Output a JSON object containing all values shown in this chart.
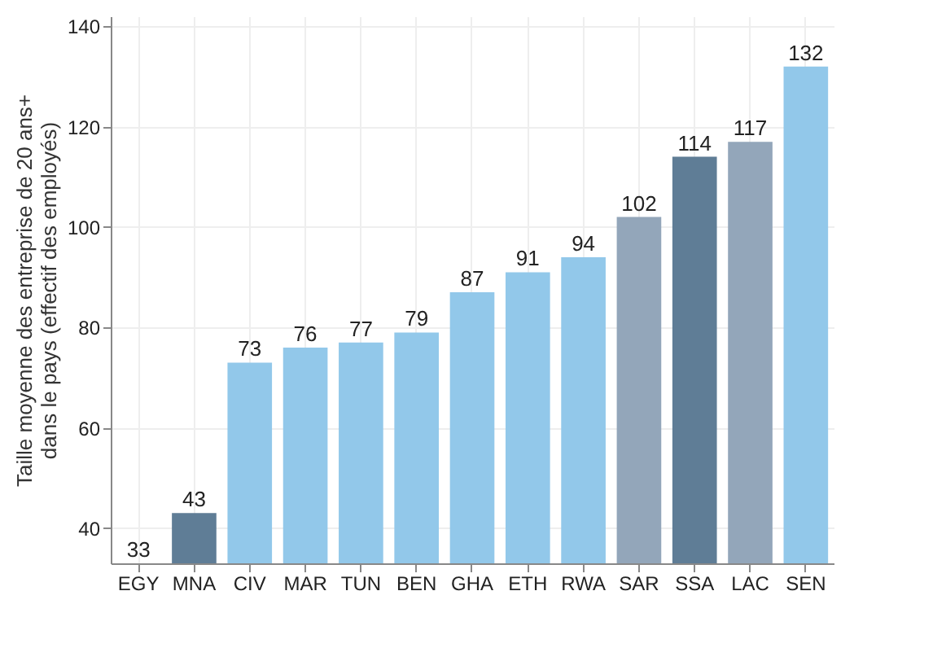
{
  "chart_data": {
    "type": "bar",
    "ylabel": "Taille moyenne des entreprise de 20 ans+\ndans le pays (effectif des employés)",
    "categories": [
      "EGY",
      "MNA",
      "CIV",
      "MAR",
      "TUN",
      "BEN",
      "GHA",
      "ETH",
      "RWA",
      "SAR",
      "SSA",
      "LAC",
      "SEN"
    ],
    "values": [
      33,
      43,
      73,
      76,
      77,
      79,
      87,
      91,
      94,
      102,
      114,
      117,
      132
    ],
    "colors": [
      "#92c8ea",
      "#5f7d96",
      "#92c8ea",
      "#92c8ea",
      "#92c8ea",
      "#92c8ea",
      "#92c8ea",
      "#92c8ea",
      "#92c8ea",
      "#93a6ba",
      "#5f7d96",
      "#93a6ba",
      "#92c8ea"
    ],
    "ylim": [
      33,
      142
    ],
    "yticks": [
      40,
      60,
      80,
      100,
      120,
      140
    ],
    "grid": true,
    "data_labels": true
  }
}
